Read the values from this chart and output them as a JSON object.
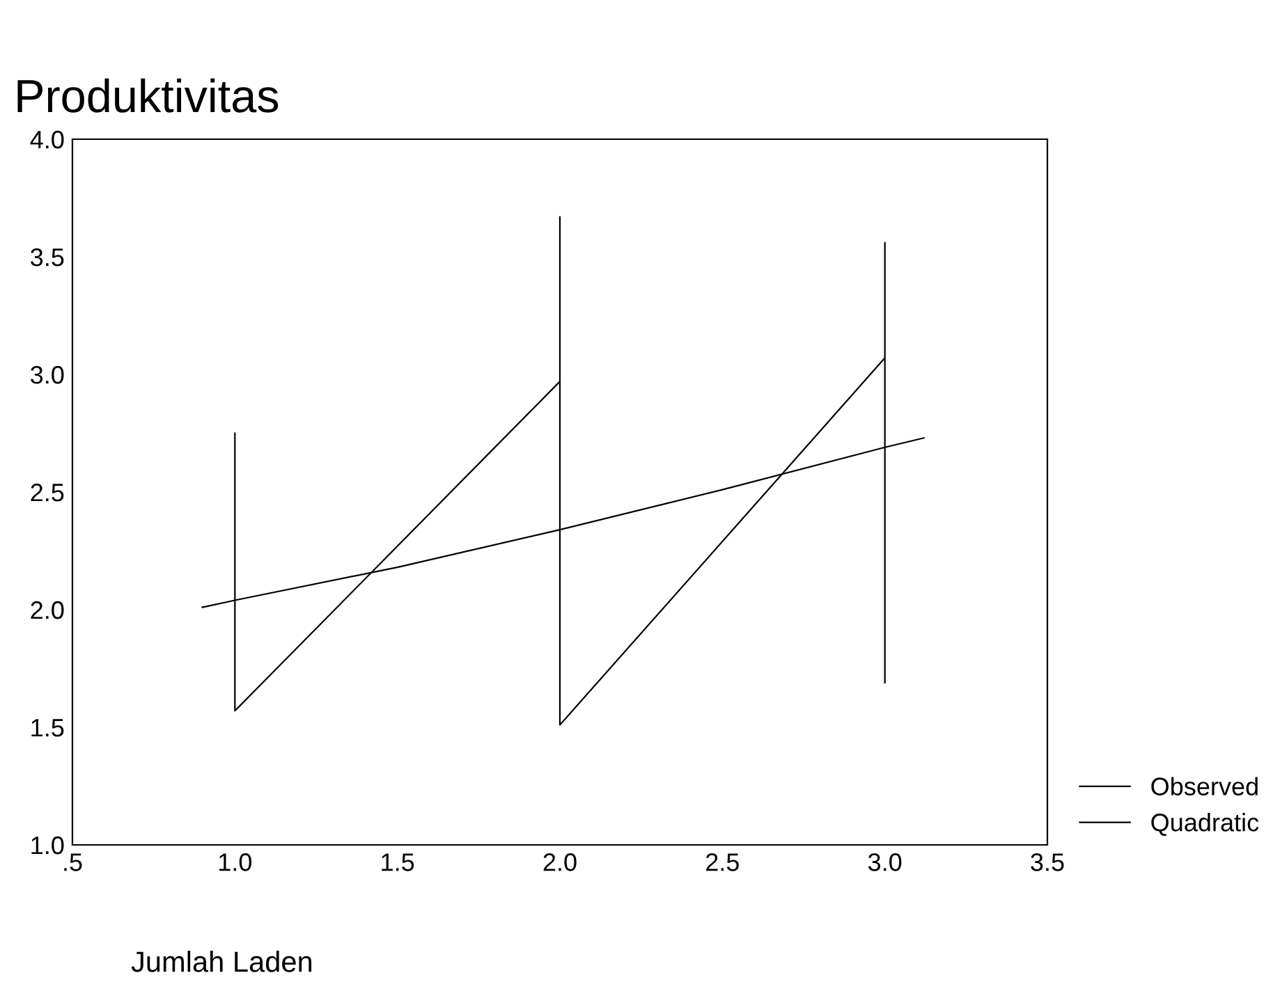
{
  "chart_data": {
    "type": "line",
    "title": "Produktivitas",
    "xlabel": "Jumlah Laden",
    "series": [
      {
        "name": "Observed",
        "color": "#000000",
        "x": [
          1.0,
          1.0,
          2.0,
          2.0,
          2.0,
          3.0,
          3.0,
          3.0
        ],
        "values": [
          2.75,
          1.57,
          2.97,
          3.67,
          1.51,
          3.07,
          3.56,
          1.69
        ]
      },
      {
        "name": "Quadratic",
        "color": "#000000",
        "x": [
          0.9,
          1.0,
          1.5,
          2.0,
          2.5,
          3.0,
          3.12
        ],
        "values": [
          2.01,
          2.04,
          2.18,
          2.34,
          2.51,
          2.69,
          2.73
        ]
      }
    ],
    "xlim": [
      0.5,
      3.5
    ],
    "xticks": [
      {
        "value": 0.5,
        "label": ".5"
      },
      {
        "value": 1.0,
        "label": "1.0"
      },
      {
        "value": 1.5,
        "label": "1.5"
      },
      {
        "value": 2.0,
        "label": "2.0"
      },
      {
        "value": 2.5,
        "label": "2.5"
      },
      {
        "value": 3.0,
        "label": "3.0"
      },
      {
        "value": 3.5,
        "label": "3.5"
      }
    ],
    "ylim": [
      1.0,
      4.0
    ],
    "yticks": [
      {
        "value": 1.0,
        "label": "1.0"
      },
      {
        "value": 1.5,
        "label": "1.5"
      },
      {
        "value": 2.0,
        "label": "2.0"
      },
      {
        "value": 2.5,
        "label": "2.5"
      },
      {
        "value": 3.0,
        "label": "3.0"
      },
      {
        "value": 3.5,
        "label": "3.5"
      },
      {
        "value": 4.0,
        "label": "4.0"
      }
    ],
    "grid": false,
    "legend": "bottom right",
    "marker": "none",
    "line_style": "solid"
  }
}
